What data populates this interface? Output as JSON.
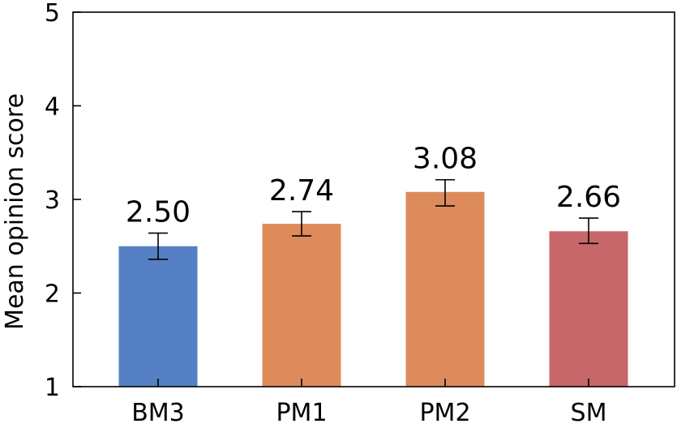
{
  "chart_data": {
    "type": "bar",
    "categories": [
      "BM3",
      "PM1",
      "PM2",
      "SM"
    ],
    "values": [
      2.5,
      2.74,
      3.08,
      2.66
    ],
    "value_labels": [
      "2.50",
      "2.74",
      "3.08",
      "2.66"
    ],
    "error": [
      {
        "low": 2.36,
        "high": 2.64
      },
      {
        "low": 2.61,
        "high": 2.87
      },
      {
        "low": 2.93,
        "high": 3.21
      },
      {
        "low": 2.53,
        "high": 2.8
      }
    ],
    "bar_colors": [
      "#5580c3",
      "#dd8b5b",
      "#dd8b5b",
      "#c6676a"
    ],
    "ylabel": "Mean opinion score",
    "xlabel": "",
    "ylim": [
      1,
      5
    ],
    "yticks": [
      1,
      2,
      3,
      4,
      5
    ],
    "ytick_labels": [
      "1",
      "2",
      "3",
      "4",
      "5"
    ],
    "grid": false,
    "legend": "none"
  }
}
